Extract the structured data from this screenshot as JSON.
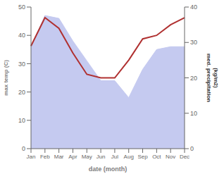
{
  "chart_data": {
    "type": "line",
    "categories": [
      "Jan",
      "Feb",
      "Mar",
      "Apr",
      "May",
      "Jun",
      "Jul",
      "Aug",
      "Sep",
      "Oct",
      "Nov",
      "Dec"
    ],
    "xlabel": "date (month)",
    "ylabel": "max temp (C)",
    "y2label": "med. precipitation\n(kg/m2)",
    "ylim": [
      0,
      50
    ],
    "yticks": [
      0,
      10,
      20,
      30,
      40,
      50
    ],
    "y2lim": [
      0,
      40
    ],
    "y2ticks": [
      0,
      10,
      20,
      30,
      40
    ],
    "grid": false,
    "series": [
      {
        "type": "area",
        "color": "#c5caf0",
        "values": [
          36,
          47,
          46,
          38,
          31,
          24,
          24,
          18,
          28,
          35,
          36,
          36
        ]
      },
      {
        "type": "line",
        "axis": "y2",
        "color": "#b03030",
        "values": [
          29,
          37,
          34,
          27,
          21,
          20,
          20,
          25,
          31,
          32,
          35,
          37
        ]
      }
    ]
  }
}
